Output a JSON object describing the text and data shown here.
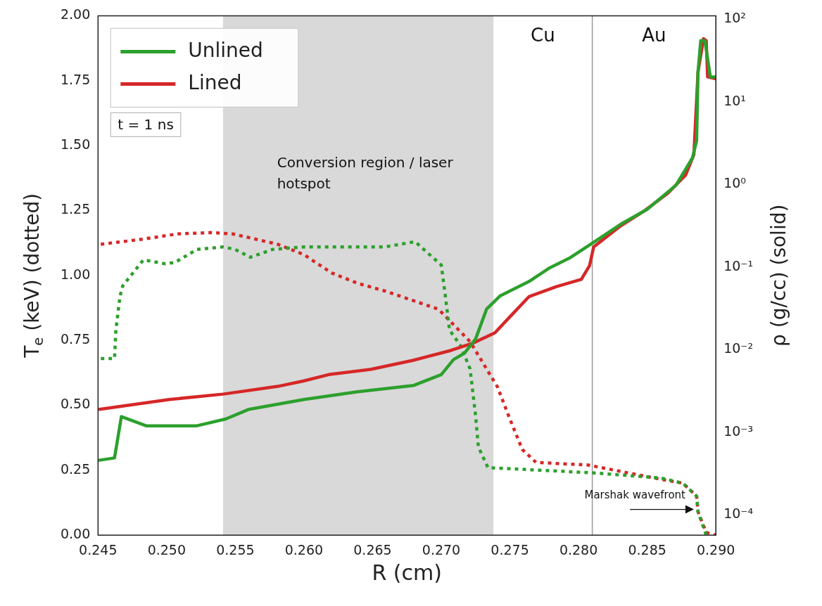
{
  "chart_data": {
    "type": "line",
    "xlabel": "R (cm)",
    "ylabel": "T$_{e}$ (keV) (dotted)",
    "y2label": "ρ (g/cc) (solid)",
    "xlim": [
      0.245,
      0.29
    ],
    "xticks": [
      {
        "value": 0.245,
        "label": "0.245"
      },
      {
        "value": 0.25,
        "label": "0.250"
      },
      {
        "value": 0.255,
        "label": "0.255"
      },
      {
        "value": 0.26,
        "label": "0.260"
      },
      {
        "value": 0.265,
        "label": "0.265"
      },
      {
        "value": 0.27,
        "label": "0.270"
      },
      {
        "value": 0.275,
        "label": "0.275"
      },
      {
        "value": 0.28,
        "label": "0.280"
      },
      {
        "value": 0.285,
        "label": "0.285"
      },
      {
        "value": 0.29,
        "label": "0.290"
      }
    ],
    "ylim": [
      0,
      2
    ],
    "yticks": [
      {
        "value": 0,
        "label": "0.00"
      },
      {
        "value": 0.25,
        "label": "0.25"
      },
      {
        "value": 0.5,
        "label": "0.50"
      },
      {
        "value": 0.75,
        "label": "0.75"
      },
      {
        "value": 1,
        "label": "1.00"
      },
      {
        "value": 1.25,
        "label": "1.25"
      },
      {
        "value": 1.5,
        "label": "1.50"
      },
      {
        "value": 1.75,
        "label": "1.75"
      },
      {
        "value": 2,
        "label": "2.00"
      }
    ],
    "y2lim": [
      5.7e-05,
      110
    ],
    "y2ticks": [
      {
        "value": 0.0001,
        "label": "10⁻⁴"
      },
      {
        "value": 0.001,
        "label": "10⁻³"
      },
      {
        "value": 0.01,
        "label": "10⁻²"
      },
      {
        "value": 0.1,
        "label": "10⁻¹"
      },
      {
        "value": 1,
        "label": "10⁰"
      },
      {
        "value": 10,
        "label": "10¹"
      },
      {
        "value": 100,
        "label": "10²"
      }
    ],
    "log": "y2",
    "grid": false,
    "legend": "top left",
    "series": [
      {
        "name": "Unlined",
        "color": "#2ca02c",
        "axis": "y2",
        "line_style": "solid",
        "x": [
          0.2451,
          0.2462,
          0.2467,
          0.2485,
          0.2522,
          0.2543,
          0.256,
          0.26,
          0.2639,
          0.268,
          0.27,
          0.2709,
          0.2717,
          0.2725,
          0.2733,
          0.2743,
          0.2764,
          0.2779,
          0.2794,
          0.2811,
          0.2832,
          0.285,
          0.2871,
          0.2883,
          0.2886,
          0.2887,
          0.2889,
          0.2892,
          0.2896,
          0.29
        ],
        "values": [
          0.00046,
          0.00049,
          0.00155,
          0.0012,
          0.0012,
          0.00145,
          0.0019,
          0.0025,
          0.0031,
          0.0037,
          0.005,
          0.0076,
          0.0091,
          0.0135,
          0.031,
          0.045,
          0.067,
          0.098,
          0.13,
          0.2,
          0.34,
          0.5,
          0.98,
          2.1,
          3.4,
          23,
          55,
          55,
          20,
          20
        ]
      },
      {
        "name": "Lined",
        "color": "#d62728",
        "axis": "y2",
        "line_style": "solid",
        "x": [
          0.2451,
          0.2502,
          0.2541,
          0.2581,
          0.26,
          0.2618,
          0.2649,
          0.2679,
          0.2707,
          0.2723,
          0.2739,
          0.275,
          0.2764,
          0.2784,
          0.2802,
          0.2808,
          0.2811,
          0.283,
          0.2848,
          0.2865,
          0.2878,
          0.2884,
          0.2887,
          0.2891,
          0.2893,
          0.2894,
          0.29
        ],
        "values": [
          0.0019,
          0.0025,
          0.0029,
          0.0036,
          0.0042,
          0.005,
          0.0058,
          0.0074,
          0.0098,
          0.012,
          0.016,
          0.025,
          0.044,
          0.058,
          0.071,
          0.104,
          0.175,
          0.31,
          0.48,
          0.78,
          1.3,
          2.3,
          23,
          58,
          55,
          20,
          19
        ]
      },
      {
        "color": "#2ca02c",
        "axis": "y",
        "line_style": "dotted",
        "x": [
          0.2452,
          0.2462,
          0.2463,
          0.2466,
          0.2468,
          0.2483,
          0.2499,
          0.2506,
          0.2522,
          0.2541,
          0.255,
          0.2561,
          0.2577,
          0.26,
          0.2639,
          0.2659,
          0.2681,
          0.27,
          0.2703,
          0.2706,
          0.2714,
          0.2721,
          0.2725,
          0.2727,
          0.2734,
          0.281,
          0.286,
          0.2876,
          0.2886,
          0.2887,
          0.2893
        ],
        "values": [
          0.68,
          0.68,
          0.79,
          0.92,
          0.96,
          1.06,
          1.045,
          1.05,
          1.1,
          1.11,
          1.1,
          1.07,
          1.1,
          1.11,
          1.11,
          1.11,
          1.13,
          1.04,
          0.92,
          0.79,
          0.73,
          0.64,
          0.46,
          0.34,
          0.26,
          0.24,
          0.22,
          0.2,
          0.15,
          0.09,
          0
        ]
      },
      {
        "color": "#d62728",
        "axis": "y",
        "line_style": "dotted",
        "x": [
          0.2452,
          0.2483,
          0.2508,
          0.2532,
          0.2548,
          0.2581,
          0.26,
          0.262,
          0.2639,
          0.2659,
          0.2698,
          0.2721,
          0.2741,
          0.2749,
          0.2759,
          0.2769,
          0.2807,
          0.286,
          0.2876,
          0.2886,
          0.2887,
          0.2893,
          0.29
        ],
        "values": [
          1.12,
          1.14,
          1.16,
          1.165,
          1.16,
          1.12,
          1.08,
          1.01,
          0.97,
          0.94,
          0.87,
          0.745,
          0.57,
          0.46,
          0.33,
          0.28,
          0.27,
          0.215,
          0.2,
          0.15,
          0.09,
          0.01,
          0
        ]
      }
    ],
    "bands": [
      {
        "axis": "x",
        "from": 0.2541,
        "to": 0.2738,
        "label": "Conversion region / laser hotspot",
        "color": "#d9d9d9"
      }
    ],
    "ref_lines": [
      {
        "axis": "x",
        "value": 0.281,
        "color": "#999999"
      }
    ],
    "annotations": [
      "Cu",
      "Au",
      {
        "text": "Marshak wavefront",
        "x": 0.2884,
        "y": 0.11
      },
      "t = 1 ns"
    ]
  }
}
